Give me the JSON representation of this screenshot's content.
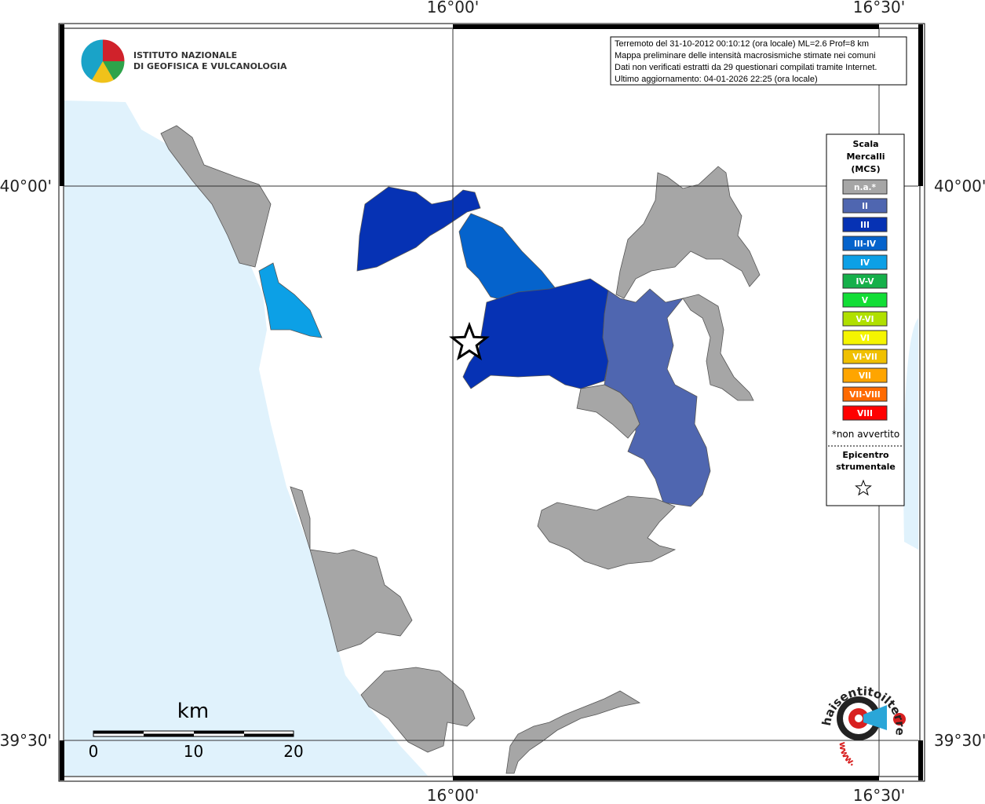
{
  "logo": {
    "line1": "ISTITUTO NAZIONALE",
    "line2": "DI GEOFISICA E VULCANOLOGIA"
  },
  "info": [
    "Terremoto del 31-10-2012 00:10:12 (ora locale) ML=2.6 Prof=8 km",
    "Mappa preliminare delle intensità macrosismiche stimate nei comuni",
    "Dati non verificati estratti da 29 questionari compilati tramite Internet.",
    "Ultimo aggiornamento: 04-01-2026 22:25 (ora locale)"
  ],
  "axes": {
    "top": [
      "16°00'",
      "16°30'"
    ],
    "bottom": [
      "16°00'",
      "16°30'"
    ],
    "left": [
      "40°00'",
      "39°30'"
    ],
    "right": [
      "40°00'",
      "39°30'"
    ]
  },
  "legend": {
    "title": [
      "Scala",
      "Mercalli",
      "(MCS)"
    ],
    "items": [
      {
        "label": "n.a.*",
        "color": "#a6a6a6"
      },
      {
        "label": "II",
        "color": "#4f66b0"
      },
      {
        "label": "III",
        "color": "#0632b4"
      },
      {
        "label": "III-IV",
        "color": "#0563cc"
      },
      {
        "label": "IV",
        "color": "#0ca0e6"
      },
      {
        "label": "IV-V",
        "color": "#15b04a"
      },
      {
        "label": "V",
        "color": "#12de36"
      },
      {
        "label": "V-VI",
        "color": "#b0e000"
      },
      {
        "label": "VI",
        "color": "#f5f500"
      },
      {
        "label": "VI-VII",
        "color": "#f0c000"
      },
      {
        "label": "VII",
        "color": "#ffa500"
      },
      {
        "label": "VII-VIII",
        "color": "#ff6a00"
      },
      {
        "label": "VIII",
        "color": "#ff0000"
      }
    ],
    "note": "*non avvertito",
    "epicenter": [
      "Epicentro",
      "strumentale"
    ]
  },
  "scale": {
    "unit": "km",
    "ticks": [
      0,
      10,
      20
    ]
  },
  "badge": {
    "site": "haisentitoilterremoto.it",
    "prefix": "www."
  }
}
